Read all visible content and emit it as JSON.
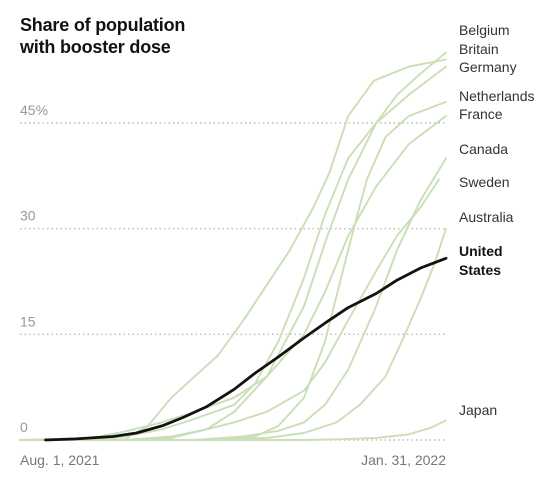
{
  "title_lines": [
    "Share of population",
    "with booster dose"
  ],
  "colors": {
    "series": "#c9dfb7",
    "highlight": "#121212",
    "grid": "#bbbbbb",
    "tick": "#999999"
  },
  "chart_data": {
    "type": "line",
    "title": "Share of population with booster dose",
    "x_start": "2021-08-01",
    "x_end": "2022-01-31",
    "x_ticks": [
      "Aug. 1, 2021",
      "Jan. 31, 2022"
    ],
    "y_ticks": [
      0,
      15,
      30,
      45
    ],
    "y_tick_labels": [
      "0",
      "15",
      "30",
      "45%"
    ],
    "ylim": [
      0,
      47
    ],
    "grid": "horizontal dotted",
    "legend": "direct labels at line ends",
    "series": [
      {
        "name": "Belgium",
        "highlight": false,
        "points": [
          [
            "2021-08-01",
            0
          ],
          [
            "2021-09-15",
            0
          ],
          [
            "2021-10-05",
            0.3
          ],
          [
            "2021-10-20",
            1.5
          ],
          [
            "2021-11-01",
            4
          ],
          [
            "2021-11-15",
            9
          ],
          [
            "2021-12-01",
            19
          ],
          [
            "2021-12-10",
            28
          ],
          [
            "2021-12-20",
            37
          ],
          [
            "2022-01-01",
            45
          ],
          [
            "2022-01-10",
            49
          ],
          [
            "2022-01-20",
            52
          ],
          [
            "2022-01-31",
            55
          ]
        ]
      },
      {
        "name": "Britain",
        "highlight": false,
        "points": [
          [
            "2021-08-01",
            0
          ],
          [
            "2021-09-15",
            0.1
          ],
          [
            "2021-09-25",
            2
          ],
          [
            "2021-10-05",
            6
          ],
          [
            "2021-10-15",
            9
          ],
          [
            "2021-10-25",
            12
          ],
          [
            "2021-11-05",
            17
          ],
          [
            "2021-11-15",
            22
          ],
          [
            "2021-11-25",
            27
          ],
          [
            "2021-12-05",
            33
          ],
          [
            "2021-12-12",
            38
          ],
          [
            "2021-12-20",
            46
          ],
          [
            "2021-12-31",
            51
          ],
          [
            "2022-01-15",
            53
          ],
          [
            "2022-01-31",
            54
          ]
        ]
      },
      {
        "name": "Germany",
        "highlight": false,
        "points": [
          [
            "2021-08-01",
            0
          ],
          [
            "2021-09-01",
            0.1
          ],
          [
            "2021-09-15",
            0.5
          ],
          [
            "2021-10-01",
            1.5
          ],
          [
            "2021-10-15",
            3
          ],
          [
            "2021-11-01",
            5
          ],
          [
            "2021-11-10",
            8
          ],
          [
            "2021-11-20",
            14
          ],
          [
            "2021-12-01",
            23
          ],
          [
            "2021-12-10",
            32
          ],
          [
            "2021-12-20",
            40
          ],
          [
            "2022-01-01",
            45
          ],
          [
            "2022-01-15",
            49
          ],
          [
            "2022-01-31",
            53
          ]
        ]
      },
      {
        "name": "Netherlands",
        "highlight": false,
        "points": [
          [
            "2021-08-01",
            0
          ],
          [
            "2021-10-15",
            0
          ],
          [
            "2021-11-10",
            0.5
          ],
          [
            "2021-11-20",
            2
          ],
          [
            "2021-12-01",
            6
          ],
          [
            "2021-12-10",
            14
          ],
          [
            "2021-12-20",
            27
          ],
          [
            "2021-12-28",
            37
          ],
          [
            "2022-01-05",
            43
          ],
          [
            "2022-01-15",
            46
          ],
          [
            "2022-01-31",
            48
          ]
        ]
      },
      {
        "name": "France",
        "highlight": false,
        "points": [
          [
            "2021-08-01",
            0
          ],
          [
            "2021-09-01",
            0.3
          ],
          [
            "2021-09-15",
            1.2
          ],
          [
            "2021-10-01",
            2.5
          ],
          [
            "2021-10-15",
            4
          ],
          [
            "2021-11-01",
            6
          ],
          [
            "2021-11-15",
            9
          ],
          [
            "2021-12-01",
            15
          ],
          [
            "2021-12-10",
            21
          ],
          [
            "2021-12-20",
            29
          ],
          [
            "2022-01-01",
            36
          ],
          [
            "2022-01-15",
            42
          ],
          [
            "2022-01-31",
            46
          ]
        ]
      },
      {
        "name": "Canada",
        "highlight": false,
        "points": [
          [
            "2021-08-01",
            0
          ],
          [
            "2021-10-15",
            0
          ],
          [
            "2021-11-05",
            0.5
          ],
          [
            "2021-11-20",
            1.3
          ],
          [
            "2021-12-01",
            2.5
          ],
          [
            "2021-12-10",
            5
          ],
          [
            "2021-12-20",
            10
          ],
          [
            "2022-01-01",
            19
          ],
          [
            "2022-01-10",
            27
          ],
          [
            "2022-01-20",
            34
          ],
          [
            "2022-01-31",
            40
          ]
        ]
      },
      {
        "name": "Sweden",
        "highlight": false,
        "points": [
          [
            "2021-08-01",
            0
          ],
          [
            "2021-09-15",
            0
          ],
          [
            "2021-10-05",
            0.5
          ],
          [
            "2021-10-20",
            1.5
          ],
          [
            "2021-11-01",
            2.5
          ],
          [
            "2021-11-15",
            4
          ],
          [
            "2021-12-01",
            7
          ],
          [
            "2021-12-10",
            11
          ],
          [
            "2021-12-20",
            17
          ],
          [
            "2022-01-01",
            24
          ],
          [
            "2022-01-10",
            29
          ],
          [
            "2022-01-20",
            33
          ],
          [
            "2022-01-28",
            37
          ]
        ]
      },
      {
        "name": "Australia",
        "highlight": false,
        "points": [
          [
            "2021-08-01",
            0
          ],
          [
            "2021-10-20",
            0
          ],
          [
            "2021-11-15",
            0.3
          ],
          [
            "2021-12-01",
            1
          ],
          [
            "2021-12-15",
            2.5
          ],
          [
            "2021-12-25",
            5
          ],
          [
            "2022-01-05",
            9
          ],
          [
            "2022-01-12",
            14
          ],
          [
            "2022-01-20",
            20
          ],
          [
            "2022-01-26",
            25
          ],
          [
            "2022-01-31",
            30
          ]
        ]
      },
      {
        "name": "United States",
        "highlight": true,
        "points": [
          [
            "2021-08-12",
            0
          ],
          [
            "2021-08-25",
            0.15
          ],
          [
            "2021-09-10",
            0.5
          ],
          [
            "2021-09-20",
            1
          ],
          [
            "2021-10-01",
            2
          ],
          [
            "2021-10-10",
            3.2
          ],
          [
            "2021-10-20",
            4.7
          ],
          [
            "2021-11-01",
            7.2
          ],
          [
            "2021-11-10",
            9.5
          ],
          [
            "2021-11-20",
            11.8
          ],
          [
            "2021-12-01",
            14.5
          ],
          [
            "2021-12-10",
            16.6
          ],
          [
            "2021-12-20",
            18.8
          ],
          [
            "2022-01-01",
            20.8
          ],
          [
            "2022-01-10",
            22.7
          ],
          [
            "2022-01-20",
            24.4
          ],
          [
            "2022-01-31",
            25.8
          ]
        ]
      },
      {
        "name": "Japan",
        "highlight": false,
        "points": [
          [
            "2021-08-01",
            0
          ],
          [
            "2021-12-01",
            0
          ],
          [
            "2021-12-15",
            0.1
          ],
          [
            "2022-01-01",
            0.3
          ],
          [
            "2022-01-15",
            0.8
          ],
          [
            "2022-01-25",
            1.8
          ],
          [
            "2022-01-31",
            2.8
          ]
        ]
      }
    ],
    "labels": [
      {
        "series": "Belgium",
        "text": "Belgium"
      },
      {
        "series": "Britain",
        "text": "Britain"
      },
      {
        "series": "Germany",
        "text": "Germany"
      },
      {
        "series": "Netherlands",
        "text": "Netherlands"
      },
      {
        "series": "France",
        "text": "France"
      },
      {
        "series": "Canada",
        "text": "Canada"
      },
      {
        "series": "Sweden",
        "text": "Sweden"
      },
      {
        "series": "Australia",
        "text": "Australia"
      },
      {
        "series": "United States",
        "text": "United",
        "text2": "States"
      },
      {
        "series": "Japan",
        "text": "Japan"
      }
    ]
  }
}
